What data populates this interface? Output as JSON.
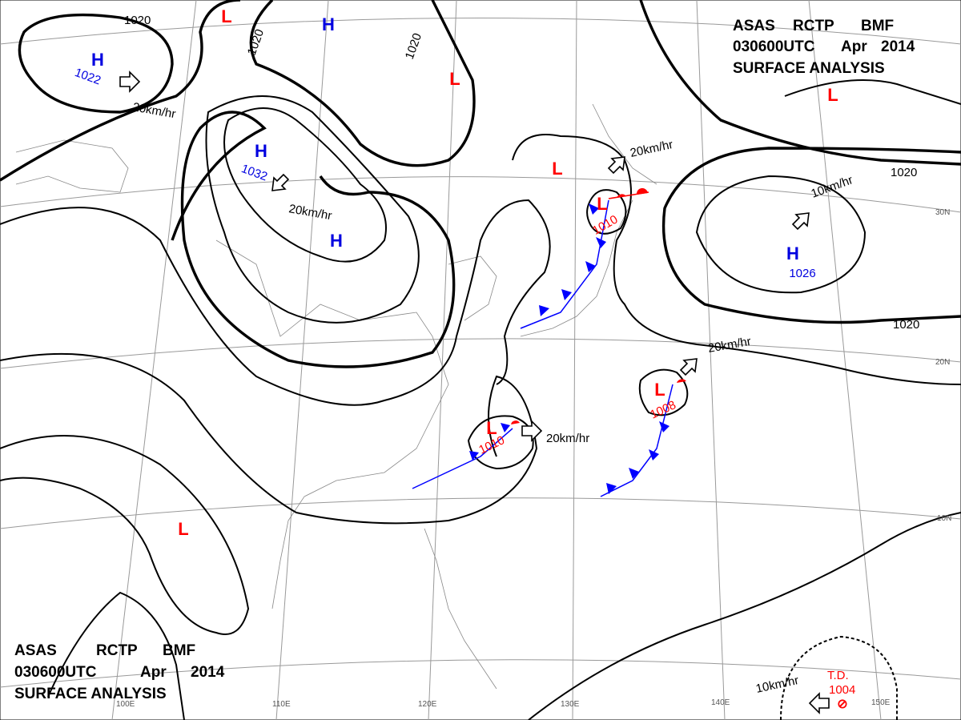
{
  "header": {
    "lines": [
      [
        "ASAS",
        "RCTP",
        "BMF"
      ],
      [
        "030600UTC",
        "Apr",
        "2014"
      ],
      [
        "SURFACE ANALYSIS"
      ]
    ]
  },
  "footer": {
    "lines": [
      [
        "ASAS",
        "RCTP",
        "BMF"
      ],
      [
        "030600UTC",
        "Apr",
        "2014"
      ],
      [
        "SURFACE ANALYSIS"
      ]
    ]
  },
  "pressure_centers": [
    {
      "symbol": "H",
      "value": "1022"
    },
    {
      "symbol": "H",
      "value": "1032"
    },
    {
      "symbol": "L",
      "value": "1010"
    },
    {
      "symbol": "H",
      "value": "1026"
    },
    {
      "symbol": "L",
      "value": "1008"
    },
    {
      "symbol": "L",
      "value": "1010"
    },
    {
      "symbol": "H"
    },
    {
      "symbol": "L"
    },
    {
      "symbol": "L"
    },
    {
      "symbol": "L"
    },
    {
      "symbol": "H"
    },
    {
      "symbol": "L"
    },
    {
      "symbol": "L"
    }
  ],
  "tropical_depression": {
    "label": "T.D.",
    "value": "1004"
  },
  "isobar_labels": [
    "1020",
    "1020",
    "1020",
    "1020",
    "1020"
  ],
  "motion_labels": [
    "20km/hr",
    "20km/hr",
    "20km/hr",
    "10km/hr",
    "20km/hr",
    "20km/hr",
    "10km/hr"
  ],
  "grid_labels": [
    "30N",
    "20N",
    "10N",
    "100E",
    "110E",
    "120E",
    "130E",
    "140E",
    "150E"
  ]
}
